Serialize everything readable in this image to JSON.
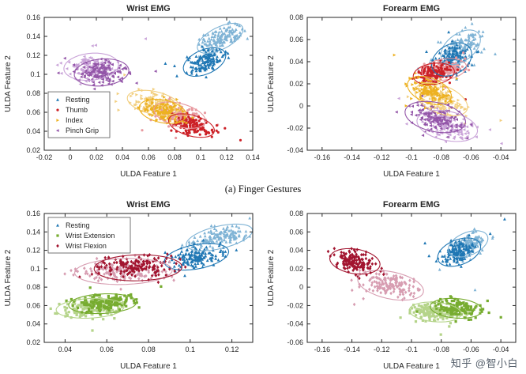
{
  "figure": {
    "caption_a": "(a) Finger Gestures",
    "watermark": "知乎 @智小白"
  },
  "axis_style": {
    "text_color": "#262626",
    "box_color": "#262626"
  },
  "chart_data": [
    {
      "id": "finger-wrist",
      "type": "scatter",
      "title": "Wrist EMG",
      "xlabel": "ULDA Feature 1",
      "ylabel": "ULDA Feature 2",
      "xlim": [
        -0.02,
        0.14
      ],
      "ylim": [
        0.02,
        0.16
      ],
      "xticks": [
        -0.02,
        0,
        0.02,
        0.04,
        0.06,
        0.08,
        0.1,
        0.12,
        0.14
      ],
      "yticks": [
        0.02,
        0.04,
        0.06,
        0.08,
        0.1,
        0.12,
        0.14,
        0.16
      ],
      "grid": false,
      "legend": {
        "show": true,
        "position": "mid-left",
        "entries": [
          "Resting",
          "Thumb",
          "Index",
          "Pinch Grip"
        ]
      },
      "clusters": [
        {
          "label": "Resting",
          "marker": "triangle-up",
          "blobs": [
            {
              "shade": "light",
              "color": "#7fb3d5",
              "center": [
                0.115,
                0.138
              ],
              "sigma": [
                0.009,
                0.0045
              ],
              "angle": 40,
              "n": 140
            },
            {
              "shade": "dark",
              "color": "#1f77b4",
              "center": [
                0.103,
                0.113
              ],
              "sigma": [
                0.008,
                0.005
              ],
              "angle": 40,
              "n": 140
            }
          ]
        },
        {
          "label": "Thumb",
          "marker": "circle",
          "blobs": [
            {
              "shade": "light",
              "color": "#e89aa0",
              "center": [
                0.084,
                0.057
              ],
              "sigma": [
                0.009,
                0.005
              ],
              "angle": -25,
              "n": 140
            },
            {
              "shade": "dark",
              "color": "#cc2127",
              "center": [
                0.093,
                0.046
              ],
              "sigma": [
                0.008,
                0.0045
              ],
              "angle": -25,
              "n": 140
            }
          ]
        },
        {
          "label": "Index",
          "marker": "triangle-right",
          "blobs": [
            {
              "shade": "light",
              "color": "#f2cf80",
              "center": [
                0.064,
                0.07
              ],
              "sigma": [
                0.009,
                0.005
              ],
              "angle": -20,
              "n": 140
            },
            {
              "shade": "dark",
              "color": "#edb120",
              "center": [
                0.071,
                0.061
              ],
              "sigma": [
                0.008,
                0.005
              ],
              "angle": -20,
              "n": 140
            }
          ]
        },
        {
          "label": "Pinch Grip",
          "marker": "triangle-left",
          "blobs": [
            {
              "shade": "light",
              "color": "#c9a3d8",
              "center": [
                0.016,
                0.108
              ],
              "sigma": [
                0.009,
                0.006
              ],
              "angle": 10,
              "n": 140
            },
            {
              "shade": "dark",
              "color": "#9355a8",
              "center": [
                0.024,
                0.102
              ],
              "sigma": [
                0.009,
                0.006
              ],
              "angle": 10,
              "n": 140
            }
          ]
        }
      ]
    },
    {
      "id": "finger-forearm",
      "type": "scatter",
      "title": "Forearm EMG",
      "xlabel": "ULDA Feature 1",
      "ylabel": "ULDA Feature 2",
      "xlim": [
        -0.17,
        -0.03
      ],
      "ylim": [
        -0.04,
        0.08
      ],
      "xticks": [
        -0.16,
        -0.14,
        -0.12,
        -0.1,
        -0.08,
        -0.06,
        -0.04
      ],
      "yticks": [
        -0.04,
        -0.02,
        0,
        0.02,
        0.04,
        0.06,
        0.08
      ],
      "grid": false,
      "legend": {
        "show": false
      },
      "clusters": [
        {
          "label": "Resting",
          "marker": "triangle-up",
          "blobs": [
            {
              "shade": "light",
              "color": "#7fb3d5",
              "center": [
                -0.067,
                0.053
              ],
              "sigma": [
                0.0075,
                0.0045
              ],
              "angle": 55,
              "n": 140
            },
            {
              "shade": "dark",
              "color": "#1f77b4",
              "center": [
                -0.073,
                0.042
              ],
              "sigma": [
                0.007,
                0.005
              ],
              "angle": 55,
              "n": 140
            }
          ]
        },
        {
          "label": "Thumb",
          "marker": "circle",
          "blobs": [
            {
              "shade": "light",
              "color": "#e89aa0",
              "center": [
                -0.078,
                0.033
              ],
              "sigma": [
                0.0065,
                0.004
              ],
              "angle": 15,
              "n": 140
            },
            {
              "shade": "dark",
              "color": "#cc2127",
              "center": [
                -0.085,
                0.029
              ],
              "sigma": [
                0.006,
                0.004
              ],
              "angle": 15,
              "n": 140
            }
          ]
        },
        {
          "label": "Index",
          "marker": "triangle-right",
          "blobs": [
            {
              "shade": "light",
              "color": "#f2cf80",
              "center": [
                -0.08,
                0.006
              ],
              "sigma": [
                0.0085,
                0.005
              ],
              "angle": -35,
              "n": 140
            },
            {
              "shade": "dark",
              "color": "#edb120",
              "center": [
                -0.088,
                0.014
              ],
              "sigma": [
                0.007,
                0.0045
              ],
              "angle": -35,
              "n": 140
            }
          ]
        },
        {
          "label": "Pinch Grip",
          "marker": "triangle-left",
          "blobs": [
            {
              "shade": "light",
              "color": "#c9a3d8",
              "center": [
                -0.076,
                -0.018
              ],
              "sigma": [
                0.009,
                0.0055
              ],
              "angle": -20,
              "n": 140
            },
            {
              "shade": "dark",
              "color": "#9355a8",
              "center": [
                -0.084,
                -0.01
              ],
              "sigma": [
                0.009,
                0.0055
              ],
              "angle": -20,
              "n": 140
            }
          ]
        }
      ]
    },
    {
      "id": "wrist-gesture-wrist",
      "type": "scatter",
      "title": "Wrist EMG",
      "xlabel": "ULDA Feature 1",
      "ylabel": "ULDA Feature 2",
      "xlim": [
        0.03,
        0.13
      ],
      "ylim": [
        0.02,
        0.16
      ],
      "xticks": [
        0.04,
        0.06,
        0.08,
        0.1,
        0.12
      ],
      "yticks": [
        0.02,
        0.04,
        0.06,
        0.08,
        0.1,
        0.12,
        0.14,
        0.16
      ],
      "grid": false,
      "legend": {
        "show": true,
        "position": "top-left",
        "entries": [
          "Resting",
          "Wrist Extension",
          "Wrist Flexion"
        ]
      },
      "clusters": [
        {
          "label": "Resting",
          "marker": "triangle-up",
          "blobs": [
            {
              "shade": "light",
              "color": "#7fb3d5",
              "center": [
                0.114,
                0.134
              ],
              "sigma": [
                0.008,
                0.0045
              ],
              "angle": 40,
              "n": 140
            },
            {
              "shade": "dark",
              "color": "#1f77b4",
              "center": [
                0.103,
                0.113
              ],
              "sigma": [
                0.0075,
                0.005
              ],
              "angle": 40,
              "n": 140
            }
          ]
        },
        {
          "label": "Wrist Extension",
          "marker": "square",
          "blobs": [
            {
              "shade": "light",
              "color": "#b5d48a",
              "center": [
                0.052,
                0.057
              ],
              "sigma": [
                0.007,
                0.0045
              ],
              "angle": 10,
              "n": 150
            },
            {
              "shade": "dark",
              "color": "#77ac30",
              "center": [
                0.058,
                0.062
              ],
              "sigma": [
                0.007,
                0.0045
              ],
              "angle": 10,
              "n": 150
            }
          ]
        },
        {
          "label": "Wrist Flexion",
          "marker": "diamond",
          "blobs": [
            {
              "shade": "light",
              "color": "#d79db1",
              "center": [
                0.068,
                0.097
              ],
              "sigma": [
                0.01,
                0.006
              ],
              "angle": 5,
              "n": 150
            },
            {
              "shade": "dark",
              "color": "#a2142f",
              "center": [
                0.075,
                0.101
              ],
              "sigma": [
                0.009,
                0.006
              ],
              "angle": 5,
              "n": 150
            }
          ]
        }
      ]
    },
    {
      "id": "wrist-gesture-forearm",
      "type": "scatter",
      "title": "Forearm EMG",
      "xlabel": "ULDA Feature 1",
      "ylabel": "ULDA Feature 2",
      "xlim": [
        -0.17,
        -0.03
      ],
      "ylim": [
        -0.06,
        0.08
      ],
      "xticks": [
        -0.16,
        -0.14,
        -0.12,
        -0.1,
        -0.08,
        -0.06,
        -0.04
      ],
      "yticks": [
        -0.06,
        -0.04,
        -0.02,
        0,
        0.02,
        0.04,
        0.06,
        0.08
      ],
      "grid": false,
      "legend": {
        "show": false
      },
      "clusters": [
        {
          "label": "Resting",
          "marker": "triangle-up",
          "blobs": [
            {
              "shade": "light",
              "color": "#7fb3d5",
              "center": [
                -0.062,
                0.047
              ],
              "sigma": [
                0.007,
                0.0045
              ],
              "angle": 50,
              "n": 140
            },
            {
              "shade": "dark",
              "color": "#1f77b4",
              "center": [
                -0.068,
                0.038
              ],
              "sigma": [
                0.0075,
                0.005
              ],
              "angle": 50,
              "n": 140
            }
          ]
        },
        {
          "label": "Wrist Extension",
          "marker": "square",
          "blobs": [
            {
              "shade": "light",
              "color": "#b5d48a",
              "center": [
                -0.084,
                -0.027
              ],
              "sigma": [
                0.0075,
                0.0045
              ],
              "angle": -10,
              "n": 150
            },
            {
              "shade": "dark",
              "color": "#77ac30",
              "center": [
                -0.07,
                -0.023
              ],
              "sigma": [
                0.0075,
                0.0045
              ],
              "angle": -10,
              "n": 150
            }
          ]
        },
        {
          "label": "Wrist Flexion",
          "marker": "diamond",
          "blobs": [
            {
              "shade": "light",
              "color": "#d79db1",
              "center": [
                -0.114,
                0.002
              ],
              "sigma": [
                0.01,
                0.006
              ],
              "angle": -25,
              "n": 150
            },
            {
              "shade": "dark",
              "color": "#a2142f",
              "center": [
                -0.138,
                0.028
              ],
              "sigma": [
                0.0075,
                0.0055
              ],
              "angle": -25,
              "n": 150
            }
          ]
        }
      ]
    }
  ]
}
